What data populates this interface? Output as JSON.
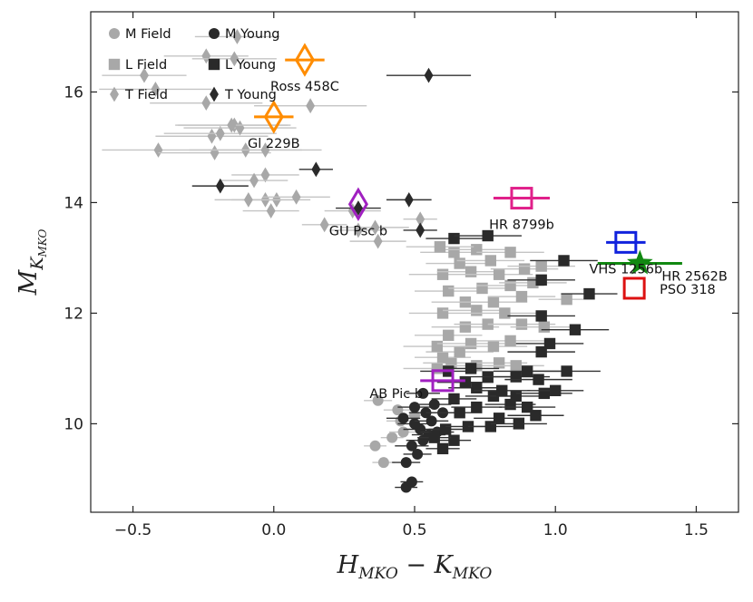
{
  "chart_data": {
    "type": "scatter",
    "title": "",
    "xlabel": "H_MKO − K_MKO",
    "ylabel": "M_K_MKO",
    "xlabel_main": "H",
    "xlabel_sub1": "MKO",
    "xlabel_minus": " − K",
    "xlabel_sub2": "MKO",
    "ylabel_main": "M",
    "ylabel_sub": "K",
    "ylabel_subsub": "MKO",
    "xlim": [
      -0.65,
      1.65
    ],
    "ylim": [
      17.45,
      8.4
    ],
    "y_inverted": true,
    "grid": false,
    "xticks": [
      -0.5,
      0.0,
      0.5,
      1.0,
      1.5
    ],
    "xtick_labels": [
      "−0.5",
      "0.0",
      "0.5",
      "1.0",
      "1.5"
    ],
    "yticks": [
      10,
      12,
      14,
      16
    ],
    "ytick_labels": [
      "10",
      "12",
      "14",
      "16"
    ],
    "legend_position": "top-left",
    "legend": [
      {
        "label": "M Field",
        "marker": "circle",
        "color": "#a8a8a8"
      },
      {
        "label": "M Young",
        "marker": "circle",
        "color": "#2a2a2a"
      },
      {
        "label": "L Field",
        "marker": "square",
        "color": "#a8a8a8"
      },
      {
        "label": "L Young",
        "marker": "square",
        "color": "#2a2a2a"
      },
      {
        "label": "T Field",
        "marker": "diamond",
        "color": "#a8a8a8"
      },
      {
        "label": "T Young",
        "marker": "diamond",
        "color": "#2a2a2a"
      }
    ],
    "series": [
      {
        "name": "M Field",
        "marker": "circle",
        "color": "#a8a8a8",
        "points": [
          {
            "x": 0.39,
            "y": 9.3,
            "xerr": 0.04
          },
          {
            "x": 0.36,
            "y": 9.6,
            "xerr": 0.04
          },
          {
            "x": 0.42,
            "y": 9.75,
            "xerr": 0.04
          },
          {
            "x": 0.46,
            "y": 9.85,
            "xerr": 0.05
          },
          {
            "x": 0.45,
            "y": 10.05,
            "xerr": 0.05
          },
          {
            "x": 0.5,
            "y": 10.15,
            "xerr": 0.05
          },
          {
            "x": 0.44,
            "y": 10.25,
            "xerr": 0.05
          },
          {
            "x": 0.37,
            "y": 10.42,
            "xerr": 0.05
          }
        ]
      },
      {
        "name": "M Young",
        "marker": "circle",
        "color": "#2a2a2a",
        "points": [
          {
            "x": 0.47,
            "y": 8.85,
            "xerr": 0.04
          },
          {
            "x": 0.49,
            "y": 8.95,
            "xerr": 0.04
          },
          {
            "x": 0.47,
            "y": 9.3,
            "xerr": 0.05
          },
          {
            "x": 0.51,
            "y": 9.45,
            "xerr": 0.05
          },
          {
            "x": 0.49,
            "y": 9.6,
            "xerr": 0.06
          },
          {
            "x": 0.53,
            "y": 9.7,
            "xerr": 0.06
          },
          {
            "x": 0.55,
            "y": 9.8,
            "xerr": 0.06
          },
          {
            "x": 0.52,
            "y": 9.9,
            "xerr": 0.06
          },
          {
            "x": 0.58,
            "y": 9.85,
            "xerr": 0.06
          },
          {
            "x": 0.5,
            "y": 10.0,
            "xerr": 0.06
          },
          {
            "x": 0.56,
            "y": 10.05,
            "xerr": 0.06
          },
          {
            "x": 0.46,
            "y": 10.1,
            "xerr": 0.06
          },
          {
            "x": 0.54,
            "y": 10.2,
            "xerr": 0.06
          },
          {
            "x": 0.6,
            "y": 10.2,
            "xerr": 0.06
          },
          {
            "x": 0.5,
            "y": 10.3,
            "xerr": 0.06
          },
          {
            "x": 0.57,
            "y": 10.35,
            "xerr": 0.06
          },
          {
            "x": 0.53,
            "y": 10.55,
            "xerr": 0.06
          }
        ]
      },
      {
        "name": "L Field",
        "marker": "square",
        "color": "#a8a8a8",
        "points": [
          {
            "x": 0.58,
            "y": 11.0,
            "xerr": 0.12
          },
          {
            "x": 0.63,
            "y": 11.1,
            "xerr": 0.1
          },
          {
            "x": 0.72,
            "y": 11.05,
            "xerr": 0.12
          },
          {
            "x": 0.8,
            "y": 11.1,
            "xerr": 0.1
          },
          {
            "x": 0.86,
            "y": 11.05,
            "xerr": 0.1
          },
          {
            "x": 0.6,
            "y": 11.2,
            "xerr": 0.1
          },
          {
            "x": 0.66,
            "y": 11.3,
            "xerr": 0.12
          },
          {
            "x": 0.58,
            "y": 11.4,
            "xerr": 0.12
          },
          {
            "x": 0.7,
            "y": 11.45,
            "xerr": 0.12
          },
          {
            "x": 0.78,
            "y": 11.4,
            "xerr": 0.12
          },
          {
            "x": 0.84,
            "y": 11.5,
            "xerr": 0.12
          },
          {
            "x": 0.62,
            "y": 11.6,
            "xerr": 0.12
          },
          {
            "x": 0.68,
            "y": 11.75,
            "xerr": 0.12
          },
          {
            "x": 0.76,
            "y": 11.8,
            "xerr": 0.12
          },
          {
            "x": 0.88,
            "y": 11.8,
            "xerr": 0.12
          },
          {
            "x": 0.96,
            "y": 11.75,
            "xerr": 0.12
          },
          {
            "x": 0.6,
            "y": 12.0,
            "xerr": 0.12
          },
          {
            "x": 0.72,
            "y": 12.05,
            "xerr": 0.12
          },
          {
            "x": 0.82,
            "y": 12.0,
            "xerr": 0.12
          },
          {
            "x": 0.68,
            "y": 12.2,
            "xerr": 0.12
          },
          {
            "x": 0.78,
            "y": 12.2,
            "xerr": 0.12
          },
          {
            "x": 0.88,
            "y": 12.3,
            "xerr": 0.12
          },
          {
            "x": 0.62,
            "y": 12.4,
            "xerr": 0.12
          },
          {
            "x": 1.04,
            "y": 12.25,
            "xerr": 0.1
          },
          {
            "x": 0.74,
            "y": 12.45,
            "xerr": 0.12
          },
          {
            "x": 0.84,
            "y": 12.5,
            "xerr": 0.12
          },
          {
            "x": 0.92,
            "y": 12.55,
            "xerr": 0.12
          },
          {
            "x": 0.6,
            "y": 12.7,
            "xerr": 0.12
          },
          {
            "x": 0.7,
            "y": 12.75,
            "xerr": 0.12
          },
          {
            "x": 0.8,
            "y": 12.7,
            "xerr": 0.12
          },
          {
            "x": 0.89,
            "y": 12.8,
            "xerr": 0.12
          },
          {
            "x": 0.66,
            "y": 12.9,
            "xerr": 0.12
          },
          {
            "x": 0.77,
            "y": 12.95,
            "xerr": 0.12
          },
          {
            "x": 0.95,
            "y": 12.85,
            "xerr": 0.12
          },
          {
            "x": 0.64,
            "y": 13.1,
            "xerr": 0.12
          },
          {
            "x": 0.72,
            "y": 13.15,
            "xerr": 0.12
          },
          {
            "x": 0.84,
            "y": 13.1,
            "xerr": 0.12
          },
          {
            "x": 0.59,
            "y": 13.2,
            "xerr": 0.12
          }
        ]
      },
      {
        "name": "L Young",
        "marker": "square",
        "color": "#2a2a2a",
        "points": [
          {
            "x": 0.6,
            "y": 9.55,
            "xerr": 0.06
          },
          {
            "x": 0.64,
            "y": 9.7,
            "xerr": 0.06
          },
          {
            "x": 0.57,
            "y": 9.75,
            "xerr": 0.06
          },
          {
            "x": 0.61,
            "y": 9.9,
            "xerr": 0.06
          },
          {
            "x": 0.69,
            "y": 9.95,
            "xerr": 0.08
          },
          {
            "x": 0.77,
            "y": 9.95,
            "xerr": 0.08
          },
          {
            "x": 0.8,
            "y": 10.1,
            "xerr": 0.09
          },
          {
            "x": 0.87,
            "y": 10.0,
            "xerr": 0.1
          },
          {
            "x": 0.93,
            "y": 10.15,
            "xerr": 0.1
          },
          {
            "x": 0.66,
            "y": 10.2,
            "xerr": 0.08
          },
          {
            "x": 0.72,
            "y": 10.3,
            "xerr": 0.09
          },
          {
            "x": 0.84,
            "y": 10.35,
            "xerr": 0.09
          },
          {
            "x": 0.9,
            "y": 10.3,
            "xerr": 0.1
          },
          {
            "x": 0.64,
            "y": 10.45,
            "xerr": 0.08
          },
          {
            "x": 0.78,
            "y": 10.5,
            "xerr": 0.1
          },
          {
            "x": 0.86,
            "y": 10.5,
            "xerr": 0.1
          },
          {
            "x": 0.72,
            "y": 10.65,
            "xerr": 0.1
          },
          {
            "x": 0.81,
            "y": 10.6,
            "xerr": 0.1
          },
          {
            "x": 0.96,
            "y": 10.55,
            "xerr": 0.1
          },
          {
            "x": 1.0,
            "y": 10.6,
            "xerr": 0.1
          },
          {
            "x": 0.68,
            "y": 10.75,
            "xerr": 0.1
          },
          {
            "x": 0.76,
            "y": 10.85,
            "xerr": 0.1
          },
          {
            "x": 0.86,
            "y": 10.85,
            "xerr": 0.12
          },
          {
            "x": 0.94,
            "y": 10.8,
            "xerr": 0.12
          },
          {
            "x": 0.62,
            "y": 10.95,
            "xerr": 0.1
          },
          {
            "x": 0.7,
            "y": 11.0,
            "xerr": 0.1
          },
          {
            "x": 0.9,
            "y": 10.95,
            "xerr": 0.12
          },
          {
            "x": 1.04,
            "y": 10.95,
            "xerr": 0.12
          },
          {
            "x": 0.95,
            "y": 11.3,
            "xerr": 0.12
          },
          {
            "x": 0.98,
            "y": 11.45,
            "xerr": 0.12
          },
          {
            "x": 1.07,
            "y": 11.7,
            "xerr": 0.12
          },
          {
            "x": 0.95,
            "y": 11.95,
            "xerr": 0.12
          },
          {
            "x": 1.12,
            "y": 12.35,
            "xerr": 0.1
          },
          {
            "x": 0.95,
            "y": 12.6,
            "xerr": 0.12
          },
          {
            "x": 1.03,
            "y": 12.95,
            "xerr": 0.12
          },
          {
            "x": 0.64,
            "y": 13.35,
            "xerr": 0.1
          },
          {
            "x": 0.76,
            "y": 13.4,
            "xerr": 0.12
          }
        ]
      },
      {
        "name": "T Field",
        "marker": "diamond",
        "color": "#a8a8a8",
        "points": [
          {
            "x": 0.52,
            "y": 13.7,
            "xerr": 0.06
          },
          {
            "x": 0.18,
            "y": 13.6,
            "xerr": 0.08
          },
          {
            "x": 0.3,
            "y": 13.5,
            "xerr": 0.1
          },
          {
            "x": 0.37,
            "y": 13.3,
            "xerr": 0.1
          },
          {
            "x": 0.36,
            "y": 13.55,
            "xerr": 0.12
          },
          {
            "x": 0.28,
            "y": 13.85,
            "xerr": 0.1
          },
          {
            "x": -0.01,
            "y": 13.85,
            "xerr": 0.1
          },
          {
            "x": -0.03,
            "y": 14.05,
            "xerr": 0.12
          },
          {
            "x": 0.01,
            "y": 14.05,
            "xerr": 0.12
          },
          {
            "x": -0.09,
            "y": 14.05,
            "xerr": 0.12
          },
          {
            "x": 0.08,
            "y": 14.1,
            "xerr": 0.12
          },
          {
            "x": -0.03,
            "y": 14.5,
            "xerr": 0.12
          },
          {
            "x": -0.07,
            "y": 14.4,
            "xerr": 0.12
          },
          {
            "x": -0.41,
            "y": 14.95,
            "xerr": 0.2
          },
          {
            "x": -0.21,
            "y": 14.9,
            "xerr": 0.2
          },
          {
            "x": -0.1,
            "y": 14.95,
            "xerr": 0.2
          },
          {
            "x": -0.03,
            "y": 14.95,
            "xerr": 0.2
          },
          {
            "x": -0.22,
            "y": 15.2,
            "xerr": 0.2
          },
          {
            "x": -0.19,
            "y": 15.25,
            "xerr": 0.2
          },
          {
            "x": -0.14,
            "y": 15.4,
            "xerr": 0.2
          },
          {
            "x": -0.12,
            "y": 15.35,
            "xerr": 0.2
          },
          {
            "x": -0.15,
            "y": 15.4,
            "xerr": 0.2
          },
          {
            "x": 0.13,
            "y": 15.75,
            "xerr": 0.2
          },
          {
            "x": -0.24,
            "y": 15.8,
            "xerr": 0.2
          },
          {
            "x": -0.42,
            "y": 16.05,
            "xerr": 0.2
          },
          {
            "x": -0.46,
            "y": 16.3,
            "xerr": 0.15
          },
          {
            "x": -0.24,
            "y": 16.65,
            "xerr": 0.15
          },
          {
            "x": -0.14,
            "y": 16.6,
            "xerr": 0.15
          },
          {
            "x": -0.13,
            "y": 17.0,
            "xerr": 0.15
          }
        ]
      },
      {
        "name": "T Young",
        "marker": "diamond",
        "color": "#2a2a2a",
        "points": [
          {
            "x": 0.52,
            "y": 13.5,
            "xerr": 0.06
          },
          {
            "x": 0.48,
            "y": 14.05,
            "xerr": 0.08
          },
          {
            "x": 0.3,
            "y": 13.9,
            "xerr": 0.08
          },
          {
            "x": -0.19,
            "y": 14.3,
            "xerr": 0.1
          },
          {
            "x": 0.15,
            "y": 14.6,
            "xerr": 0.06
          },
          {
            "x": 0.55,
            "y": 16.3,
            "xerr": 0.15
          }
        ]
      }
    ],
    "highlighted": [
      {
        "label": "AB Pic b",
        "marker": "square",
        "color": "#a020c0",
        "x": 0.6,
        "y": 10.78,
        "xerr": 0.08,
        "label_pos": "left"
      },
      {
        "label": "PSO 318",
        "marker": "square",
        "color": "#dd1111",
        "x": 1.28,
        "y": 12.45,
        "xerr": 0.0,
        "label_pos": "right"
      },
      {
        "label": "HR 2562B",
        "marker": "star",
        "color": "#118811",
        "x": 1.3,
        "y": 12.9,
        "xerr": 0.15,
        "label_pos": "right-below"
      },
      {
        "label": "VHS 1256b",
        "marker": "square",
        "color": "#1122dd",
        "x": 1.25,
        "y": 13.28,
        "xerr": 0.07,
        "label_pos": "below"
      },
      {
        "label": "HR 8799b",
        "marker": "square",
        "color": "#e0208a",
        "x": 0.88,
        "y": 14.08,
        "xerr": 0.1,
        "label_pos": "below"
      },
      {
        "label": "GU Psc b",
        "marker": "diamond",
        "color": "#a020c0",
        "x": 0.3,
        "y": 13.97,
        "xerr": 0.0,
        "label_pos": "below"
      },
      {
        "label": "Gl 229B",
        "marker": "diamond",
        "color": "#ff8c00",
        "x": 0.0,
        "y": 15.55,
        "xerr": 0.07,
        "label_pos": "below"
      },
      {
        "label": "Ross 458C",
        "marker": "diamond",
        "color": "#ff8c00",
        "x": 0.11,
        "y": 16.58,
        "xerr": 0.07,
        "label_pos": "below"
      }
    ]
  }
}
